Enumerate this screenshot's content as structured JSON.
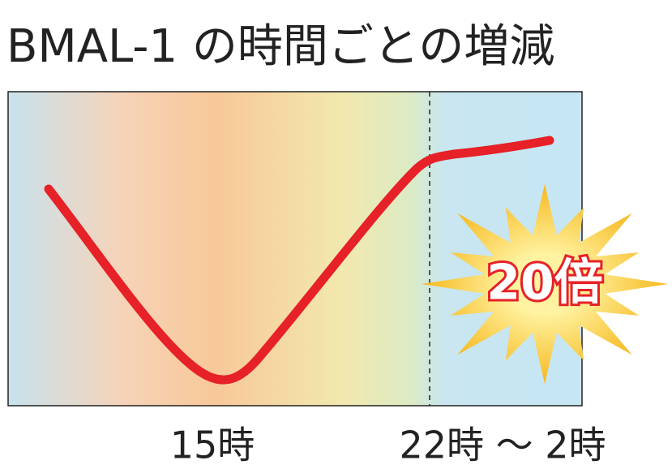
{
  "header": {
    "title": "BMAL-1 の時間ごとの増減"
  },
  "badge": {
    "label": "20倍"
  },
  "x_labels": [
    "15時",
    "22時 〜 2時"
  ]
}
